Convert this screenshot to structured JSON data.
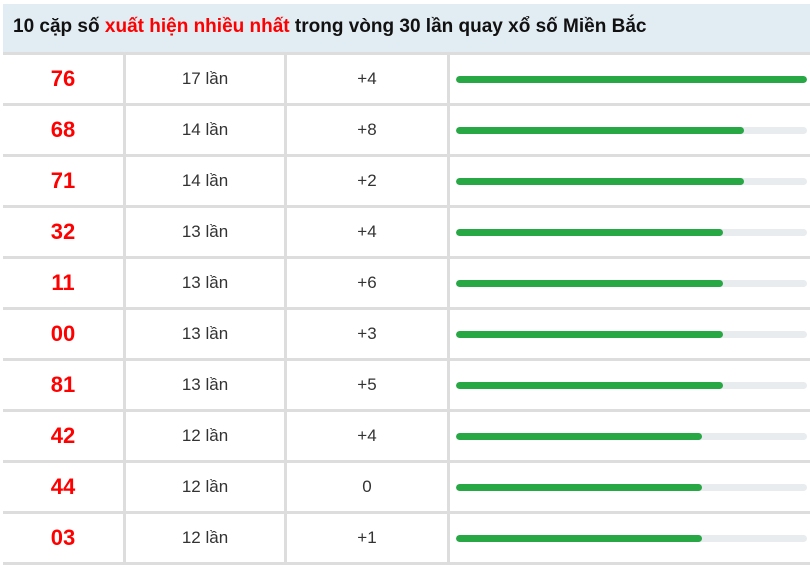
{
  "title": {
    "part1": "10 cặp số ",
    "highlight": "xuất hiện nhiều nhất",
    "part2": " trong vòng 30 lần quay xổ số Miền Bắc"
  },
  "colors": {
    "number": "#ff0000",
    "bar": "#28a745",
    "header_bg": "#e2ecf3"
  },
  "rows": [
    {
      "number": "76",
      "count": "17 lần",
      "change": "+4",
      "progress": 100
    },
    {
      "number": "68",
      "count": "14 lần",
      "change": "+8",
      "progress": 82
    },
    {
      "number": "71",
      "count": "14 lần",
      "change": "+2",
      "progress": 82
    },
    {
      "number": "32",
      "count": "13 lần",
      "change": "+4",
      "progress": 76
    },
    {
      "number": "11",
      "count": "13 lần",
      "change": "+6",
      "progress": 76
    },
    {
      "number": "00",
      "count": "13 lần",
      "change": "+3",
      "progress": 76
    },
    {
      "number": "81",
      "count": "13 lần",
      "change": "+5",
      "progress": 76
    },
    {
      "number": "42",
      "count": "12 lần",
      "change": "+4",
      "progress": 70
    },
    {
      "number": "44",
      "count": "12 lần",
      "change": "0",
      "progress": 70
    },
    {
      "number": "03",
      "count": "12 lần",
      "change": "+1",
      "progress": 70
    }
  ]
}
